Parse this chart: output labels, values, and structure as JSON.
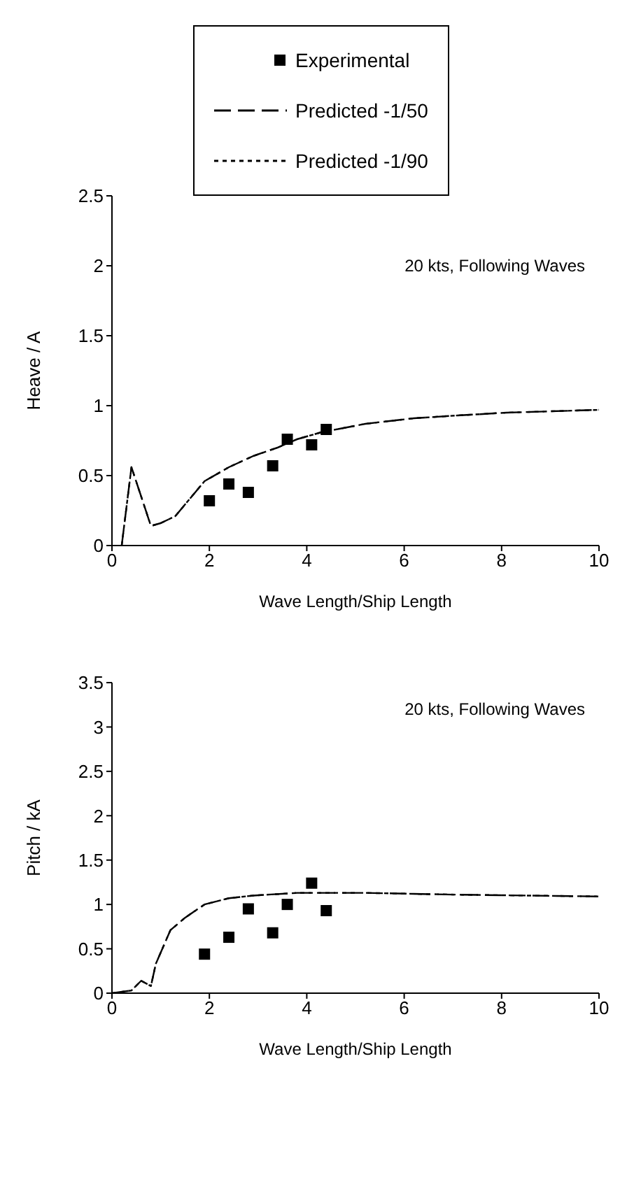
{
  "chart_data": [
    {
      "type": "scatter",
      "legend": "top",
      "xlabel": "Wave Length/Ship Length",
      "ylabel": "Heave / A",
      "annotations": [
        "20 kts, Following Waves"
      ],
      "xlim": [
        0,
        10
      ],
      "xticks": [
        0,
        2,
        4,
        6,
        8,
        10
      ],
      "ylim": [
        0,
        2.5
      ],
      "yticks": [
        0,
        0.5,
        1,
        1.5,
        2,
        2.5
      ],
      "grid": false,
      "series": [
        {
          "name": "Experimental",
          "marker": "square",
          "color": "#000000",
          "x": [
            2,
            2.4,
            2.8,
            3.3,
            3.6,
            4.1,
            4.4
          ],
          "values": [
            0.32,
            0.44,
            0.38,
            0.57,
            0.76,
            0.72,
            0.83
          ]
        },
        {
          "name": "Predicted -1/50",
          "type": "line",
          "marker": "none",
          "line_style": "dashed",
          "color": "#000000",
          "x": [
            0.2,
            0.4,
            0.8,
            1.0,
            1.3,
            1.9,
            2.4,
            2.9,
            3.4,
            3.8,
            4.3,
            5.2,
            6.2,
            7.1,
            8.1,
            10
          ],
          "values": [
            0,
            0.56,
            0.14,
            0.16,
            0.21,
            0.46,
            0.56,
            0.64,
            0.7,
            0.76,
            0.81,
            0.87,
            0.91,
            0.93,
            0.95,
            0.97
          ]
        },
        {
          "name": "Predicted -1/90",
          "type": "line",
          "marker": "none",
          "line_style": "dotted",
          "color": "#000000",
          "x": [
            0.2,
            0.4,
            0.8,
            1.0,
            1.3,
            1.9,
            2.4,
            2.9,
            3.4,
            3.8,
            4.3,
            5.2,
            6.2,
            7.1,
            8.1,
            10
          ],
          "values": [
            0,
            0.56,
            0.14,
            0.16,
            0.21,
            0.46,
            0.56,
            0.64,
            0.7,
            0.76,
            0.81,
            0.87,
            0.91,
            0.93,
            0.95,
            0.97
          ]
        }
      ]
    },
    {
      "type": "scatter",
      "legend": false,
      "xlabel": "Wave Length/Ship Length",
      "ylabel": "Pitch / kA",
      "annotations": [
        "20 kts, Following Waves"
      ],
      "xlim": [
        0,
        10
      ],
      "xticks": [
        0,
        2,
        4,
        6,
        8,
        10
      ],
      "ylim": [
        0,
        3.5
      ],
      "yticks": [
        0,
        0.5,
        1,
        1.5,
        2,
        2.5,
        3,
        3.5
      ],
      "grid": false,
      "series": [
        {
          "marker": "square",
          "color": "#000000",
          "x": [
            1.9,
            2.4,
            2.8,
            3.3,
            3.6,
            4.1,
            4.4
          ],
          "values": [
            0.44,
            0.63,
            0.95,
            0.68,
            1.0,
            1.24,
            0.93
          ]
        },
        {
          "type": "line",
          "marker": "none",
          "line_style": "dashed",
          "color": "#000000",
          "x": [
            0,
            0.4,
            0.6,
            0.8,
            0.9,
            1.2,
            1.5,
            1.9,
            2.4,
            2.9,
            3.8,
            5.2,
            7.1,
            10
          ],
          "values": [
            0,
            0.03,
            0.14,
            0.08,
            0.33,
            0.71,
            0.85,
            1.0,
            1.07,
            1.1,
            1.13,
            1.13,
            1.11,
            1.09
          ]
        },
        {
          "type": "line",
          "marker": "none",
          "line_style": "dotted",
          "color": "#000000",
          "x": [
            0,
            0.4,
            0.6,
            0.8,
            0.9,
            1.2,
            1.5,
            1.9,
            2.4,
            2.9,
            3.8,
            5.2,
            7.1,
            10
          ],
          "values": [
            0,
            0.03,
            0.14,
            0.08,
            0.33,
            0.71,
            0.85,
            1.0,
            1.07,
            1.1,
            1.13,
            1.13,
            1.11,
            1.09
          ]
        }
      ]
    }
  ]
}
